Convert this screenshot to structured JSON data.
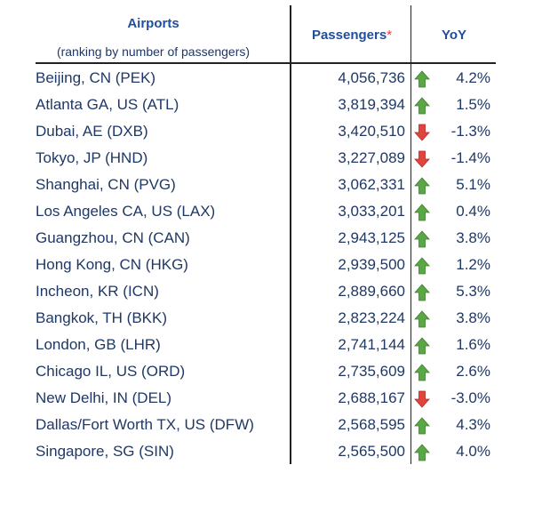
{
  "chart_data": {
    "type": "table",
    "columns": {
      "airports": "Airports",
      "airports_note": "(ranking by number of passengers)",
      "passengers": "Passengers",
      "passengers_mark": "*",
      "yoy": "YoY"
    },
    "colors": {
      "up": "#5aa845",
      "down": "#e0453d",
      "header": "#1f4e9e",
      "text": "#1f3864"
    },
    "rows": [
      {
        "airport": "Beijing, CN (PEK)",
        "passengers": "4,056,736",
        "trend": "up",
        "yoy": "4.2%"
      },
      {
        "airport": "Atlanta GA, US (ATL)",
        "passengers": "3,819,394",
        "trend": "up",
        "yoy": "1.5%"
      },
      {
        "airport": "Dubai, AE (DXB)",
        "passengers": "3,420,510",
        "trend": "down",
        "yoy": "-1.3%"
      },
      {
        "airport": "Tokyo, JP (HND)",
        "passengers": "3,227,089",
        "trend": "down",
        "yoy": "-1.4%"
      },
      {
        "airport": "Shanghai, CN (PVG)",
        "passengers": "3,062,331",
        "trend": "up",
        "yoy": "5.1%"
      },
      {
        "airport": "Los Angeles CA, US (LAX)",
        "passengers": "3,033,201",
        "trend": "up",
        "yoy": "0.4%"
      },
      {
        "airport": "Guangzhou, CN (CAN)",
        "passengers": "2,943,125",
        "trend": "up",
        "yoy": "3.8%"
      },
      {
        "airport": "Hong Kong, CN (HKG)",
        "passengers": "2,939,500",
        "trend": "up",
        "yoy": "1.2%"
      },
      {
        "airport": "Incheon, KR (ICN)",
        "passengers": "2,889,660",
        "trend": "up",
        "yoy": "5.3%"
      },
      {
        "airport": "Bangkok, TH (BKK)",
        "passengers": "2,823,224",
        "trend": "up",
        "yoy": "3.8%"
      },
      {
        "airport": "London, GB (LHR)",
        "passengers": "2,741,144",
        "trend": "up",
        "yoy": "1.6%"
      },
      {
        "airport": "Chicago IL, US (ORD)",
        "passengers": "2,735,609",
        "trend": "up",
        "yoy": "2.6%"
      },
      {
        "airport": "New Delhi, IN (DEL)",
        "passengers": "2,688,167",
        "trend": "down",
        "yoy": "-3.0%"
      },
      {
        "airport": "Dallas/Fort Worth TX, US (DFW)",
        "passengers": "2,568,595",
        "trend": "up",
        "yoy": "4.3%"
      },
      {
        "airport": "Singapore, SG (SIN)",
        "passengers": "2,565,500",
        "trend": "up",
        "yoy": "4.0%"
      }
    ]
  }
}
